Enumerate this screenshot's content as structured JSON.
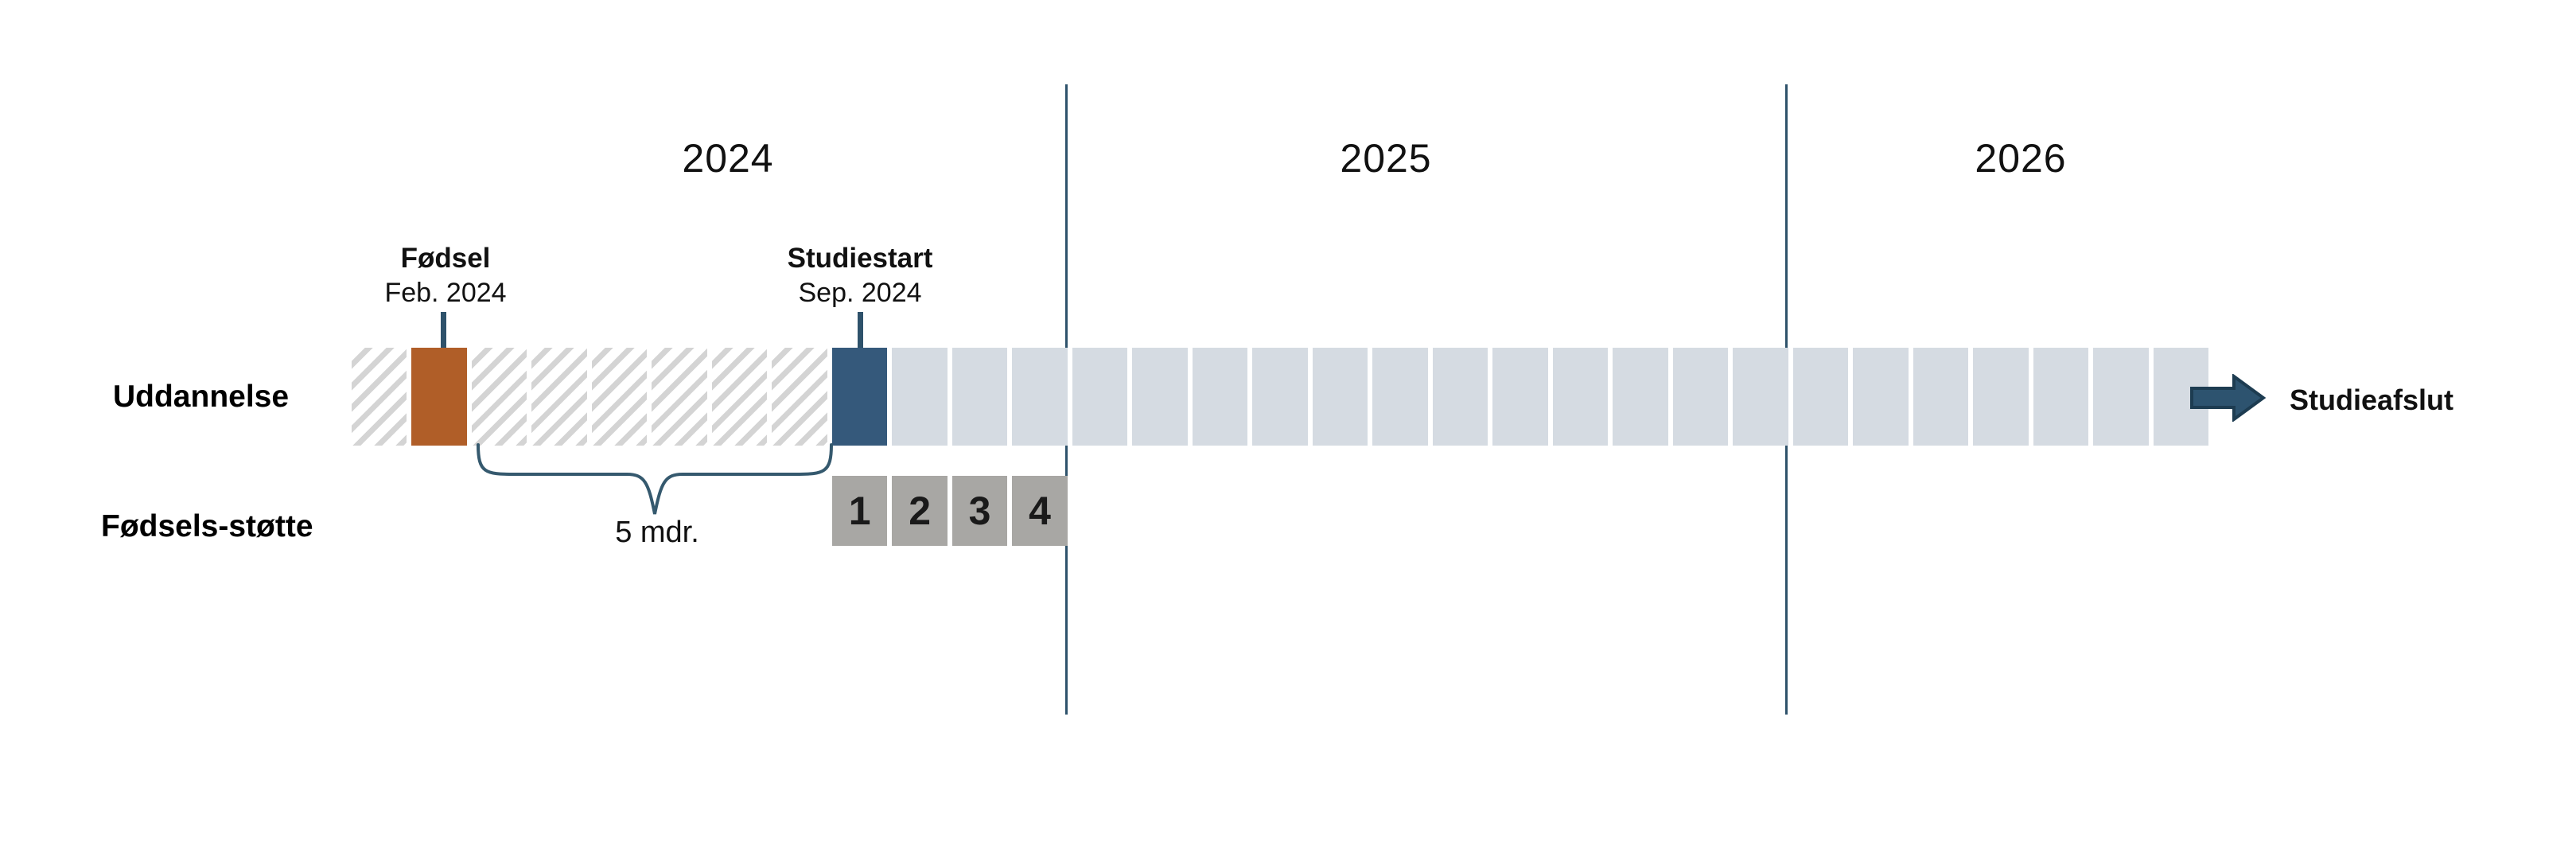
{
  "years": {
    "y2024": "2024",
    "y2025": "2025",
    "y2026": "2026"
  },
  "events": {
    "birth": {
      "title": "Fødsel",
      "date": "Feb. 2024"
    },
    "study_start": {
      "title": "Studiestart",
      "date": "Sep. 2024"
    }
  },
  "rows": {
    "education_label": "Uddannelse",
    "support_label": "Fødsels-støtte"
  },
  "annotations": {
    "brace_label": "5 mdr.",
    "end_label": "Studieafslut"
  },
  "timeline": {
    "months_total": 31,
    "cells": [
      "hatch",
      "birth",
      "hatch",
      "hatch",
      "hatch",
      "hatch",
      "hatch",
      "hatch",
      "start",
      "plain",
      "plain",
      "plain",
      "plain",
      "plain",
      "plain",
      "plain",
      "plain",
      "plain",
      "plain",
      "plain",
      "plain",
      "plain",
      "plain",
      "plain",
      "plain",
      "plain",
      "plain",
      "plain",
      "plain",
      "plain",
      "plain"
    ]
  },
  "support_boxes": {
    "start_index": 8,
    "labels": [
      "1",
      "2",
      "3",
      "4"
    ]
  },
  "colors": {
    "birth_month": "#b05e28",
    "study_start_month": "#35597b",
    "study_month": "#d5dbe2",
    "hatch_stripe": "#d4d4d4",
    "support_box": "#a8a7a4",
    "line": "#2e526b",
    "arrow_fill": "#2d536f",
    "arrow_border": "#1d3c51"
  }
}
